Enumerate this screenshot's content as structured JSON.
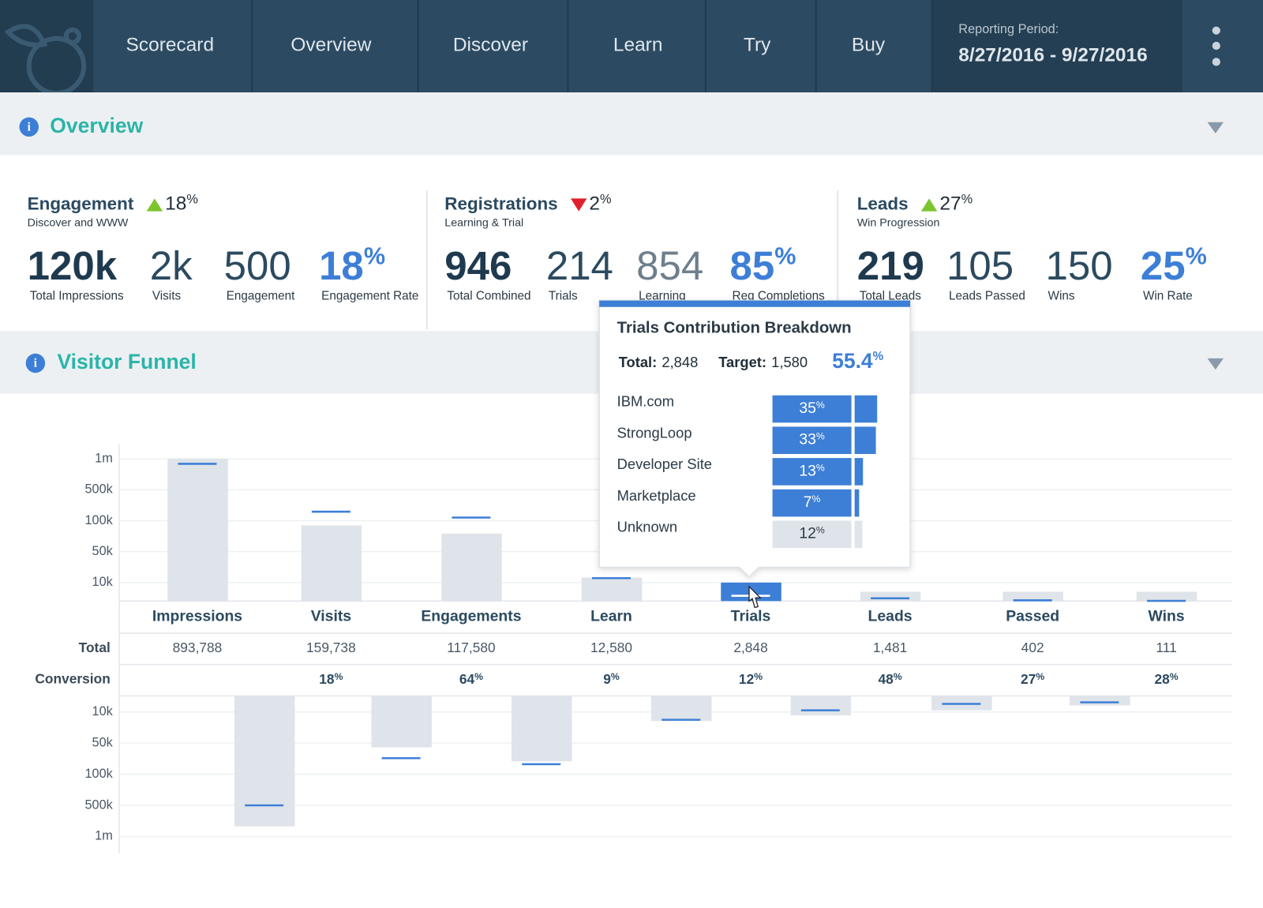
{
  "nav": {
    "items": [
      "Scorecard",
      "Overview",
      "Discover",
      "Learn",
      "Try",
      "Buy"
    ],
    "period_label": "Reporting Period:",
    "period": "8/27/2016 - 9/27/2016"
  },
  "overview": {
    "title": "Overview",
    "groups": [
      {
        "title": "Engagement",
        "change": 18,
        "unit": "%",
        "trend": "up",
        "subtitle": "Discover and WWW",
        "metrics": [
          {
            "value": "120k",
            "label": "Total Impressions"
          },
          {
            "value": "2k",
            "label": "Visits"
          },
          {
            "value": "500",
            "label": "Engagement"
          },
          {
            "value": 18,
            "unit": "%",
            "label": "Engagement Rate",
            "color": "#3d7fd6"
          }
        ]
      },
      {
        "title": "Registrations",
        "change": 2,
        "unit": "%",
        "trend": "down",
        "subtitle": "Learning & Trial",
        "metrics": [
          {
            "value": "946",
            "label": "Total Combined"
          },
          {
            "value": "214",
            "label": "Trials"
          },
          {
            "value": "854",
            "label": "Learning",
            "color": "#6d7f8d"
          },
          {
            "value": 85,
            "unit": "%",
            "label": "Reg Completions",
            "color": "#3d7fd6"
          }
        ]
      },
      {
        "title": "Leads",
        "change": 27,
        "unit": "%",
        "trend": "up",
        "subtitle": "Win Progression",
        "metrics": [
          {
            "value": "219",
            "label": "Total Leads"
          },
          {
            "value": "105",
            "label": "Leads Passed"
          },
          {
            "value": "150",
            "label": "Wins"
          },
          {
            "value": 25,
            "unit": "%",
            "label": "Win Rate",
            "color": "#3d7fd6"
          }
        ]
      }
    ]
  },
  "funnel": {
    "title": "Visitor Funnel",
    "row_labels": [
      "Total",
      "Conversion"
    ]
  },
  "chart_data": [
    {
      "type": "bar",
      "log": true,
      "categories": [
        "Impressions",
        "Visits",
        "Engagements",
        "Learn",
        "Trials",
        "Leads",
        "Passed",
        "Wins"
      ],
      "series": [
        {
          "color": "#dfe4ea",
          "values": [
            1000000,
            90000,
            75000,
            13000,
            10000,
            5000,
            5000,
            5000
          ]
        },
        {
          "color": "#3d7fd6",
          "values": [
            893788,
            159738,
            117580,
            12580,
            2848,
            1481,
            402,
            111
          ],
          "value_labels": [
            "893,788",
            "159,738",
            "117,580",
            "12,580",
            "2,848",
            "1,481",
            "402",
            "111"
          ]
        }
      ],
      "highlight": 4,
      "highlight_color": "#3d7fd6",
      "conversion": {
        "values": [
          null,
          18,
          64,
          9,
          12,
          48,
          27,
          28
        ],
        "unit": "%"
      },
      "ylim": [
        0,
        1000000
      ],
      "yticks": [
        {
          "value": 10000,
          "label": "10k"
        },
        {
          "value": 50000,
          "label": "50k"
        },
        {
          "value": 100000,
          "label": "100k"
        },
        {
          "value": 500000,
          "label": "500k"
        },
        {
          "value": 1000000,
          "label": "1m"
        }
      ],
      "grid": true
    },
    {
      "type": "bar",
      "log": true,
      "inverted": true,
      "series": [
        {
          "color": "#dfe4ea",
          "values": [
            800000,
            55000,
            75000,
            16000,
            12000,
            9000,
            6000
          ]
        },
        {
          "color": "#3d7fd6",
          "values": [
            500000,
            70000,
            80000,
            15000,
            9000,
            5000,
            4000
          ]
        }
      ],
      "ylim": [
        0,
        1000000
      ],
      "yticks": [
        {
          "value": 10000,
          "label": "10k"
        },
        {
          "value": 50000,
          "label": "50k"
        },
        {
          "value": 100000,
          "label": "100k"
        },
        {
          "value": 500000,
          "label": "500k"
        },
        {
          "value": 1000000,
          "label": "1m"
        }
      ],
      "grid": true
    }
  ],
  "tooltip": {
    "title": "Trials Contribution Breakdown",
    "total": {
      "label": "Total:",
      "value": 2848,
      "value_label": "2,848"
    },
    "target": {
      "label": "Target:",
      "value": 1580,
      "value_label": "1,580"
    },
    "rate": {
      "value": 55.4,
      "unit": "%"
    },
    "categories": [
      "IBM.com",
      "StrongLoop",
      "Developer Site",
      "Marketplace",
      "Unknown"
    ],
    "values": [
      35,
      33,
      13,
      7,
      12
    ],
    "unit": "%",
    "colors": [
      "#3d7fd6",
      "#3d7fd6",
      "#3d7fd6",
      "#3d7fd6",
      "#dfe4ea"
    ]
  }
}
